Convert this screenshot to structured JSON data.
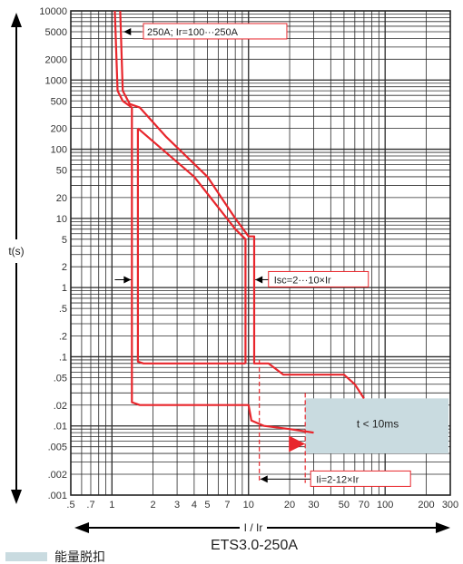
{
  "chart_data": {
    "type": "line",
    "title": "ETS3.0-250A",
    "xlabel": "I / Ir",
    "ylabel": "t(s)",
    "xscale": "log",
    "yscale": "log",
    "xlim": [
      0.5,
      300
    ],
    "ylim": [
      0.001,
      10000
    ],
    "x_ticks": [
      {
        "v": 0.5,
        "label": ".5"
      },
      {
        "v": 0.7,
        "label": ".7"
      },
      {
        "v": 1,
        "label": "1"
      },
      {
        "v": 2,
        "label": "2"
      },
      {
        "v": 3,
        "label": "3"
      },
      {
        "v": 4,
        "label": "4"
      },
      {
        "v": 5,
        "label": "5"
      },
      {
        "v": 7,
        "label": "7"
      },
      {
        "v": 10,
        "label": "10"
      },
      {
        "v": 20,
        "label": "20"
      },
      {
        "v": 30,
        "label": "30"
      },
      {
        "v": 50,
        "label": "50"
      },
      {
        "v": 70,
        "label": "70"
      },
      {
        "v": 100,
        "label": "100"
      },
      {
        "v": 200,
        "label": "200"
      },
      {
        "v": 300,
        "label": "300"
      }
    ],
    "y_ticks": [
      {
        "v": 10000,
        "label": "10000"
      },
      {
        "v": 5000,
        "label": "5000"
      },
      {
        "v": 2000,
        "label": "2000"
      },
      {
        "v": 1000,
        "label": "1000"
      },
      {
        "v": 500,
        "label": "500"
      },
      {
        "v": 200,
        "label": "200"
      },
      {
        "v": 100,
        "label": "100"
      },
      {
        "v": 50,
        "label": "50"
      },
      {
        "v": 20,
        "label": "20"
      },
      {
        "v": 10,
        "label": "10"
      },
      {
        "v": 5,
        "label": "5"
      },
      {
        "v": 2,
        "label": "2"
      },
      {
        "v": 1,
        "label": "1"
      },
      {
        "v": 0.5,
        "label": ".5"
      },
      {
        "v": 0.2,
        "label": ".2"
      },
      {
        "v": 0.1,
        "label": ".1"
      },
      {
        "v": 0.05,
        "label": ".05"
      },
      {
        "v": 0.02,
        "label": ".02"
      },
      {
        "v": 0.01,
        "label": ".01"
      },
      {
        "v": 0.005,
        "label": ".005"
      },
      {
        "v": 0.002,
        "label": ".002"
      },
      {
        "v": 0.001,
        "label": ".001"
      }
    ],
    "grid": true,
    "series": [
      {
        "name": "",
        "color": "#e8262c",
        "points": [
          [
            1.05,
            10000
          ],
          [
            1.1,
            700
          ],
          [
            1.2,
            500
          ],
          [
            1.4,
            400
          ],
          [
            1.4,
            0.022
          ],
          [
            1.6,
            0.02
          ],
          [
            10,
            0.02
          ],
          [
            10.5,
            0.012
          ],
          [
            13,
            0.01
          ],
          [
            20,
            0.009
          ],
          [
            30,
            0.008
          ]
        ]
      },
      {
        "name": "",
        "color": "#e8262c",
        "points": [
          [
            1.15,
            10000
          ],
          [
            1.2,
            700
          ],
          [
            1.35,
            450
          ],
          [
            1.6,
            400
          ],
          [
            2.5,
            150
          ],
          [
            5,
            40
          ],
          [
            8,
            10
          ],
          [
            10,
            5.5
          ],
          [
            11,
            5.5
          ],
          [
            11,
            0.08
          ],
          [
            12,
            0.08
          ],
          [
            14,
            0.08
          ],
          [
            18,
            0.055
          ],
          [
            30,
            0.055
          ],
          [
            50,
            0.055
          ],
          [
            60,
            0.04
          ],
          [
            70,
            0.025
          ]
        ]
      },
      {
        "name": "",
        "color": "#e8262c",
        "points": [
          [
            1.55,
            200
          ],
          [
            1.55,
            0.085
          ],
          [
            1.7,
            0.08
          ],
          [
            9.5,
            0.08
          ]
        ]
      },
      {
        "name": "",
        "color": "#e8262c",
        "points": [
          [
            1.55,
            200
          ],
          [
            2,
            130
          ],
          [
            4,
            40
          ],
          [
            8,
            7
          ],
          [
            9.5,
            5
          ],
          [
            9.5,
            0.08
          ]
        ]
      }
    ],
    "annotations": [
      {
        "text": "250A;  Ir=100···250A",
        "x": 1.8,
        "y": 5000
      },
      {
        "text": "Isc=2···10×Ir",
        "x": 14,
        "y": 1.2
      },
      {
        "text": "Ii=2-12×Ir",
        "x": 13,
        "y": 0.0017
      },
      {
        "text": "t < 10ms",
        "x": 50,
        "y": 0.007
      }
    ],
    "region": {
      "x": [
        26,
        300
      ],
      "y": [
        0.004,
        0.025
      ],
      "label": "t < 10ms",
      "color": "#c9dbe0"
    }
  },
  "legend": {
    "label": "能量脱扣",
    "color": "#c9dbe0"
  }
}
